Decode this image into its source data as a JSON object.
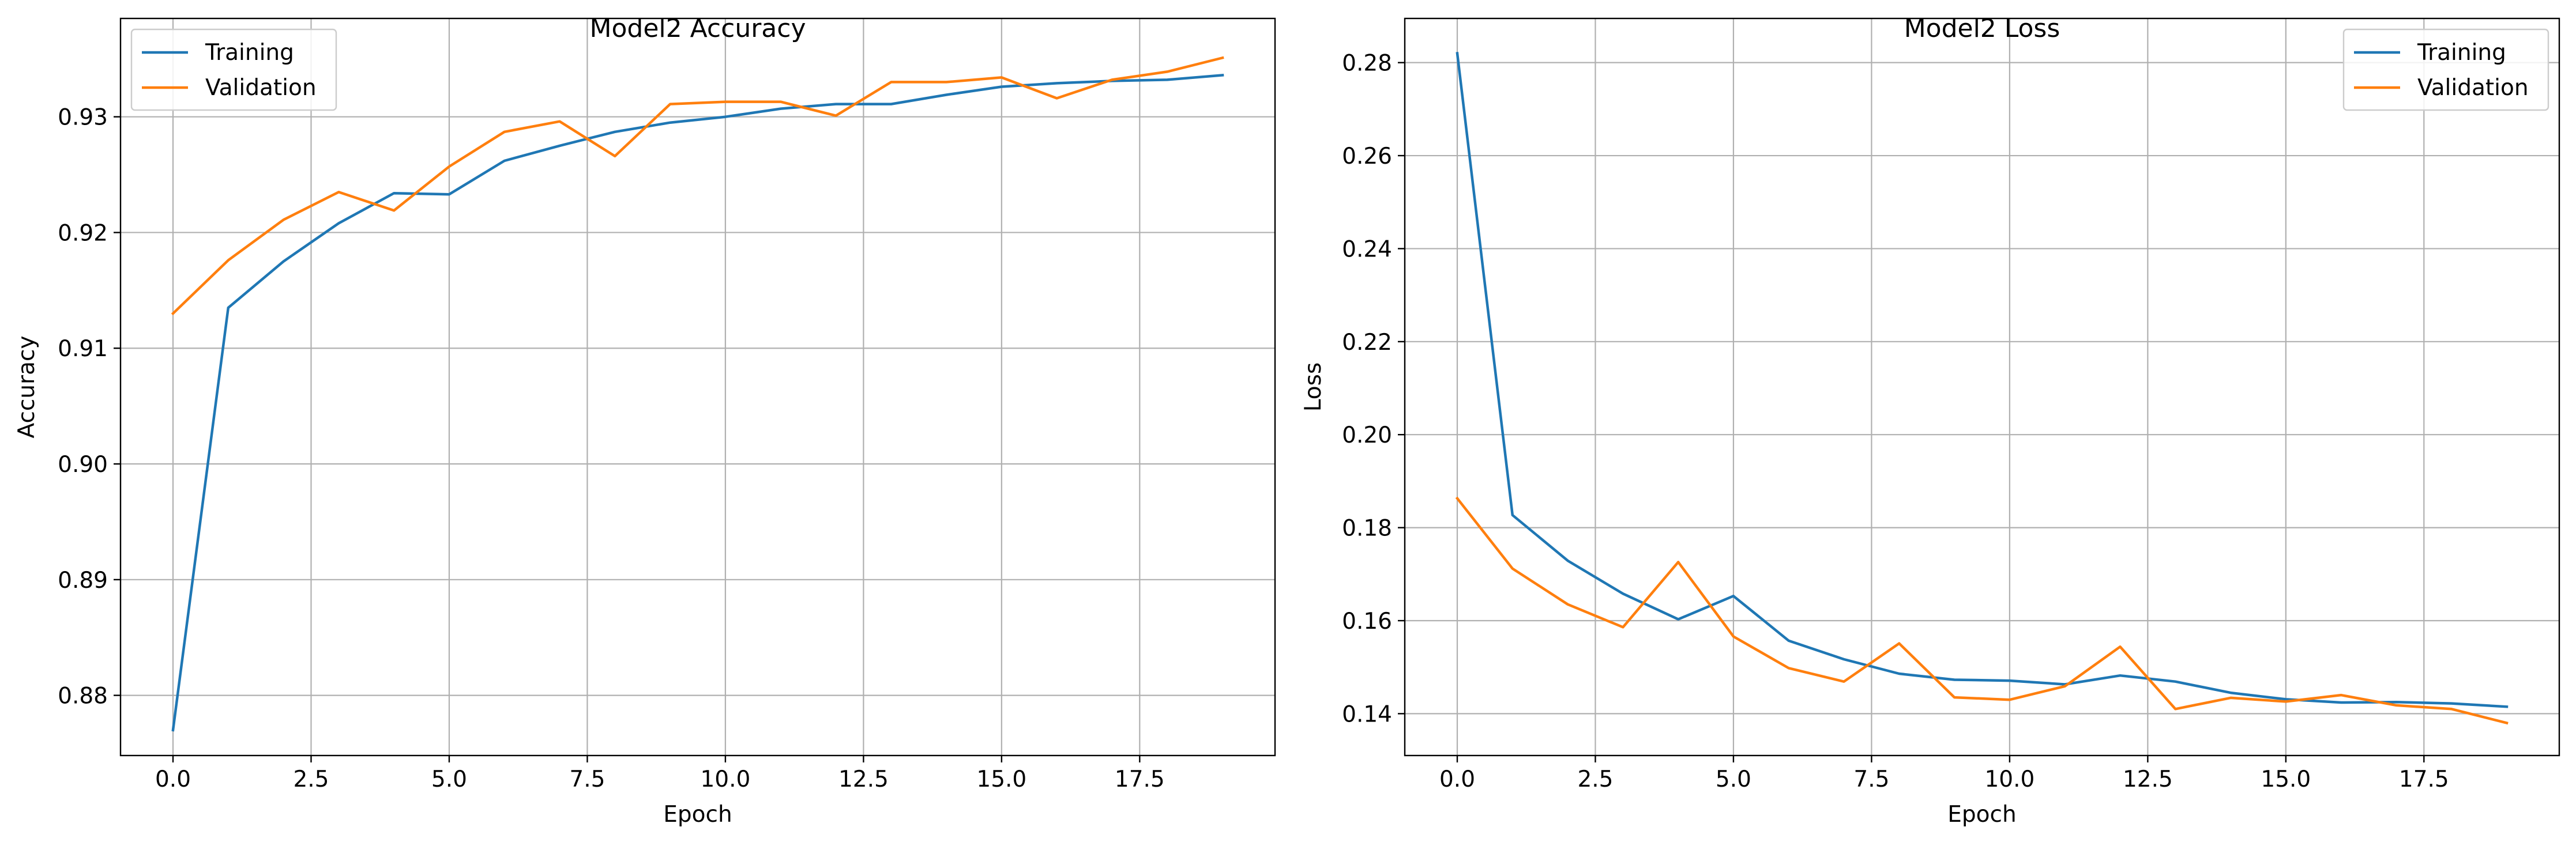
{
  "chart_data": [
    {
      "type": "line",
      "title": "Model2 Accuracy",
      "xlabel": "Epoch",
      "ylabel": "Accuracy",
      "xlim": [
        -0.95,
        19.95
      ],
      "ylim": [
        0.8748,
        0.9385
      ],
      "xticks": [
        0.0,
        2.5,
        5.0,
        7.5,
        10.0,
        12.5,
        15.0,
        17.5
      ],
      "xtick_labels": [
        "0.0",
        "2.5",
        "5.0",
        "7.5",
        "10.0",
        "12.5",
        "15.0",
        "17.5"
      ],
      "yticks": [
        0.88,
        0.89,
        0.9,
        0.91,
        0.92,
        0.93
      ],
      "ytick_labels": [
        "0.88",
        "0.89",
        "0.90",
        "0.91",
        "0.92",
        "0.93"
      ],
      "grid": true,
      "legend_position": "upper left",
      "x": [
        0,
        1,
        2,
        3,
        4,
        5,
        6,
        7,
        8,
        9,
        10,
        11,
        12,
        13,
        14,
        15,
        16,
        17,
        18,
        19
      ],
      "series": [
        {
          "name": "Training",
          "color": "#1f77b4",
          "values": [
            0.877,
            0.9135,
            0.9175,
            0.9208,
            0.9234,
            0.9233,
            0.9262,
            0.9275,
            0.9287,
            0.9295,
            0.93,
            0.9307,
            0.9311,
            0.9311,
            0.9319,
            0.9326,
            0.9329,
            0.9331,
            0.9332,
            0.9336
          ]
        },
        {
          "name": "Validation",
          "color": "#ff7f0e",
          "values": [
            0.913,
            0.9176,
            0.9211,
            0.9235,
            0.9219,
            0.9257,
            0.9287,
            0.9296,
            0.9266,
            0.9311,
            0.9313,
            0.9313,
            0.9301,
            0.933,
            0.933,
            0.9334,
            0.9316,
            0.9332,
            0.9339,
            0.9351
          ]
        }
      ]
    },
    {
      "type": "line",
      "title": "Model2 Loss",
      "xlabel": "Epoch",
      "ylabel": "Loss",
      "xlim": [
        -0.95,
        19.95
      ],
      "ylim": [
        0.131,
        0.2895
      ],
      "xticks": [
        0.0,
        2.5,
        5.0,
        7.5,
        10.0,
        12.5,
        15.0,
        17.5
      ],
      "xtick_labels": [
        "0.0",
        "2.5",
        "5.0",
        "7.5",
        "10.0",
        "12.5",
        "15.0",
        "17.5"
      ],
      "yticks": [
        0.14,
        0.16,
        0.18,
        0.2,
        0.22,
        0.24,
        0.26,
        0.28
      ],
      "ytick_labels": [
        "0.14",
        "0.16",
        "0.18",
        "0.20",
        "0.22",
        "0.24",
        "0.26",
        "0.28"
      ],
      "grid": true,
      "legend_position": "upper right",
      "x": [
        0,
        1,
        2,
        3,
        4,
        5,
        6,
        7,
        8,
        9,
        10,
        11,
        12,
        13,
        14,
        15,
        16,
        17,
        18,
        19
      ],
      "series": [
        {
          "name": "Training",
          "color": "#1f77b4",
          "values": [
            0.282,
            0.1827,
            0.1729,
            0.1658,
            0.1603,
            0.1653,
            0.1557,
            0.1517,
            0.1486,
            0.1473,
            0.1471,
            0.1463,
            0.1482,
            0.1469,
            0.1445,
            0.1431,
            0.1424,
            0.1425,
            0.1422,
            0.1415
          ]
        },
        {
          "name": "Validation",
          "color": "#ff7f0e",
          "values": [
            0.1863,
            0.1712,
            0.1635,
            0.1586,
            0.1726,
            0.1566,
            0.1498,
            0.1469,
            0.1551,
            0.1435,
            0.143,
            0.1459,
            0.1544,
            0.141,
            0.1434,
            0.1426,
            0.144,
            0.1418,
            0.141,
            0.138
          ]
        }
      ]
    }
  ]
}
